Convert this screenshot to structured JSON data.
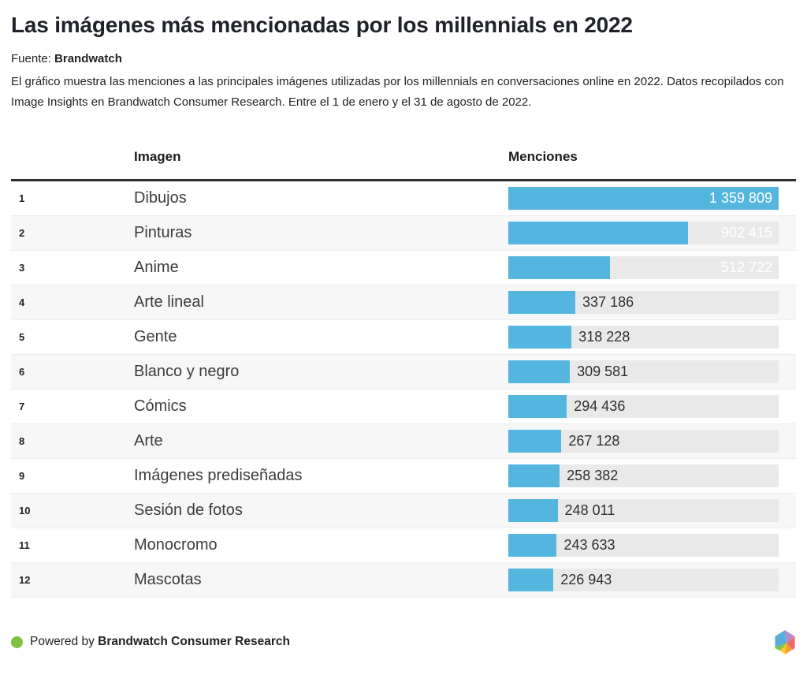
{
  "header": {
    "title": "Las imágenes más mencionadas por los millennials en 2022",
    "source_label": "Fuente:",
    "source_name": "Brandwatch",
    "description": "El gráfico muestra las menciones a las principales imágenes utilizadas por los millennials en conversaciones online en 2022. Datos recopilados con Image Insights en Brandwatch Consumer Research. Entre el 1 de enero y el 31 de agosto de 2022."
  },
  "table": {
    "columns": {
      "image": "Imagen",
      "mentions": "Menciones"
    }
  },
  "chart_data": {
    "type": "bar",
    "orientation": "horizontal",
    "title": "Las imágenes más mencionadas por los millennials en 2022",
    "xlabel": "Menciones",
    "ylabel": "Imagen",
    "xlim": [
      0,
      1359809
    ],
    "grid": false,
    "legend": false,
    "ranks": [
      1,
      2,
      3,
      4,
      5,
      6,
      7,
      8,
      9,
      10,
      11,
      12
    ],
    "categories": [
      "Dibujos",
      "Pinturas",
      "Anime",
      "Arte lineal",
      "Gente",
      "Blanco y negro",
      "Cómics",
      "Arte",
      "Imágenes prediseñadas",
      "Sesión de fotos",
      "Monocromo",
      "Mascotas"
    ],
    "values": [
      1359809,
      902415,
      512722,
      337186,
      318228,
      309581,
      294436,
      267128,
      258382,
      248011,
      243633,
      226943
    ],
    "value_labels": [
      "1 359 809",
      "902 415",
      "512 722",
      "337 186",
      "318 228",
      "309 581",
      "294 436",
      "267 128",
      "258 382",
      "248 011",
      "243 633",
      "226 943"
    ],
    "bar_color": "#54b6df",
    "track_color": "#e9e9e9",
    "alt_row_color": "#f7f7f7"
  },
  "footer": {
    "powered_by_prefix": "Powered by",
    "powered_by_brand": "Brandwatch Consumer Research",
    "dot_color": "#7dc242",
    "logo_colors": {
      "blue": "#5baddf",
      "purple": "#b58bc9",
      "red": "#f2696c",
      "orange": "#f99d33",
      "yellow": "#fec62e",
      "green": "#87c540"
    }
  }
}
